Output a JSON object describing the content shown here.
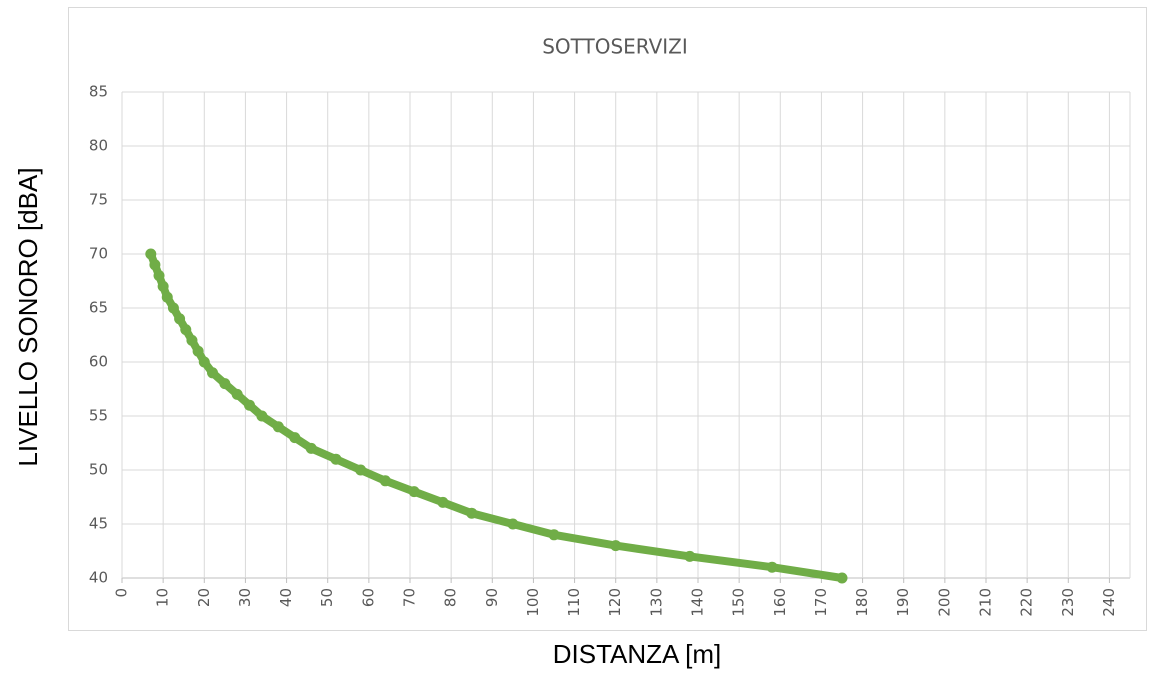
{
  "chart_data": {
    "type": "line",
    "title": "SOTTOSERVIZI",
    "x_label": "DISTANZA [m]",
    "y_label": "LIVELLO SONORO [dBA]",
    "x": [
      7,
      8,
      9,
      10,
      11,
      12.5,
      14,
      15.5,
      17,
      18.5,
      20,
      22,
      25,
      28,
      31,
      34,
      38,
      42,
      46,
      52,
      58,
      64,
      71,
      78,
      85,
      95,
      105,
      120,
      138,
      158,
      175
    ],
    "series": [
      {
        "name": "SOTTOSERVIZI",
        "color": "#70ad47",
        "values": [
          70,
          69,
          68,
          67,
          66,
          65,
          64,
          63,
          62,
          61,
          60,
          59,
          58,
          57,
          56,
          55,
          54,
          53,
          52,
          51,
          50,
          49,
          48,
          47,
          46,
          45,
          44,
          43,
          42,
          41,
          40
        ]
      }
    ],
    "xlim": [
      0,
      245
    ],
    "xticks": [
      0,
      10,
      20,
      30,
      40,
      50,
      60,
      70,
      80,
      90,
      100,
      110,
      120,
      130,
      140,
      150,
      160,
      170,
      180,
      190,
      200,
      210,
      220,
      230,
      240
    ],
    "ylim": [
      40,
      85
    ],
    "yticks": [
      40,
      45,
      50,
      55,
      60,
      65,
      70,
      75,
      80,
      85
    ],
    "grid": true
  }
}
